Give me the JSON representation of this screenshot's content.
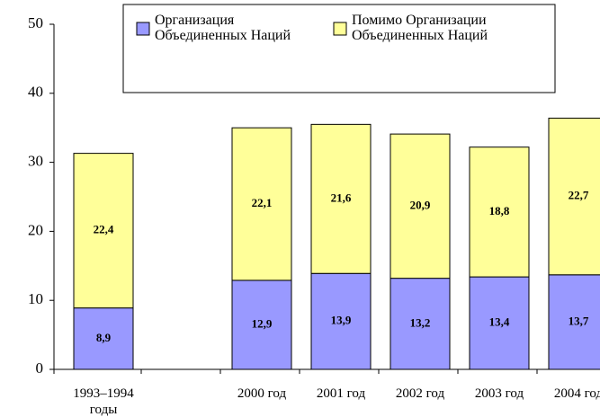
{
  "chart_data": {
    "type": "stacked_bar",
    "categories": [
      "1993–1994 годы",
      null,
      "2000 год",
      "2001 год",
      "2002 год",
      "2003 год",
      "2004 год"
    ],
    "series": [
      {
        "name": "Организация Объединенных Наций",
        "color": "#9999ff",
        "values": [
          8.9,
          null,
          12.9,
          13.9,
          13.2,
          13.4,
          13.7
        ],
        "value_labels": [
          "8,9",
          null,
          "12,9",
          "13,9",
          "13,2",
          "13,4",
          "13,7"
        ]
      },
      {
        "name": "Помимо Организации Объединенных Наций",
        "color": "#ffff99",
        "values": [
          22.4,
          null,
          22.1,
          21.6,
          20.9,
          18.8,
          22.7
        ],
        "value_labels": [
          "22,4",
          null,
          "22,1",
          "21,6",
          "20,9",
          "18,8",
          "22,7"
        ]
      }
    ],
    "ylim": [
      0,
      50
    ],
    "yticks": [
      0,
      10,
      20,
      30,
      40,
      50
    ],
    "legend": "top"
  }
}
